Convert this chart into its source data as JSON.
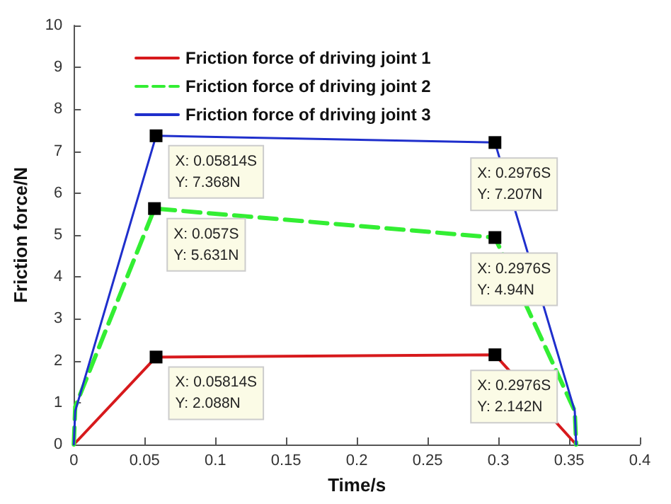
{
  "chart_data": {
    "type": "line",
    "xlabel": "Time/s",
    "ylabel": "Friction force/N",
    "xlim": [
      0,
      0.4
    ],
    "xticks": [
      0,
      0.05,
      0.1,
      0.15,
      0.2,
      0.25,
      0.3,
      0.35,
      0.4
    ],
    "ylim": [
      0,
      10
    ],
    "yticks": [
      0,
      1,
      2,
      3,
      4,
      5,
      6,
      7,
      8,
      9,
      10
    ],
    "grid": false,
    "legend": "top left",
    "series": [
      {
        "name": "Friction force of driving joint 1",
        "color": "#d7191c",
        "line_style": "solid",
        "x": [
          0,
          0.05814,
          0.2976,
          0.355
        ],
        "values": [
          0,
          2.088,
          2.142,
          0
        ]
      },
      {
        "name": "Friction force of driving joint 2",
        "color": "#33ee33",
        "line_style": "dashed",
        "x": [
          0,
          0.001,
          0.057,
          0.2976,
          0.354,
          0.355
        ],
        "values": [
          0,
          0.9,
          5.631,
          4.94,
          0.8,
          0
        ]
      },
      {
        "name": "Friction force of driving joint 3",
        "color": "#1f2fcc",
        "line_style": "solid",
        "x": [
          0,
          0.001,
          0.05814,
          0.2976,
          0.354,
          0.355
        ],
        "values": [
          0,
          0.8,
          7.368,
          7.207,
          0.8,
          0
        ]
      }
    ],
    "annotations": [
      {
        "text": "X: 0.05814S\nY: 7.368N",
        "x": 0.05814,
        "y": 7.368
      },
      {
        "text": "X: 0.2976S\nY: 7.207N",
        "x": 0.2976,
        "y": 7.207
      },
      {
        "text": "X: 0.057S\nY: 5.631N",
        "x": 0.057,
        "y": 5.631
      },
      {
        "text": "X: 0.2976S\nY: 4.94N",
        "x": 0.2976,
        "y": 4.94
      },
      {
        "text": "X: 0.05814S\nY: 2.088N",
        "x": 0.05814,
        "y": 2.088
      },
      {
        "text": "X: 0.2976S\nY: 2.142N",
        "x": 0.2976,
        "y": 2.142
      }
    ]
  }
}
